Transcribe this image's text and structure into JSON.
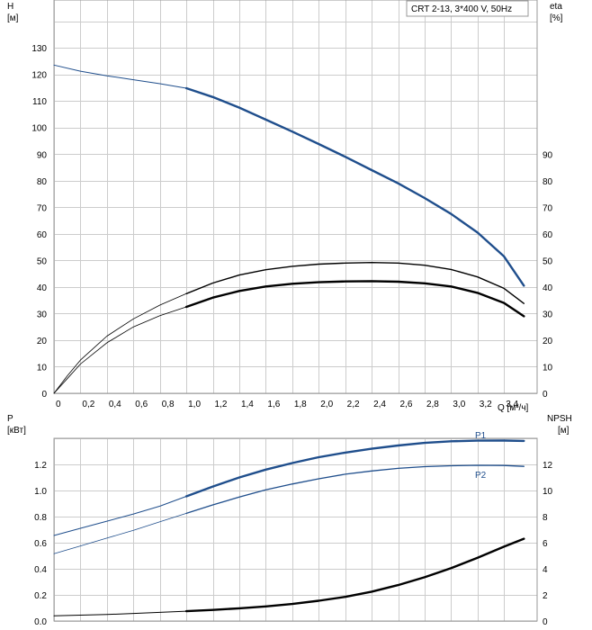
{
  "chart_data": [
    {
      "type": "line",
      "panel": "top",
      "title": "CRT 2-13, 3*400 V, 50Hz",
      "y_left_label": "H",
      "y_left_unit": "[м]",
      "y_right_label": "eta",
      "y_right_unit": "[%]",
      "x_label": "Q [м³/ч]",
      "x_ticks": [
        "0",
        "0,2",
        "0,4",
        "0,6",
        "0,8",
        "1,0",
        "1,2",
        "1,4",
        "1,6",
        "1,8",
        "2,0",
        "2,2",
        "2,4",
        "2,6",
        "2,8",
        "3,0",
        "3,2",
        "3,4"
      ],
      "y_left_ticks": [
        "0",
        "10",
        "20",
        "30",
        "40",
        "50",
        "60",
        "70",
        "80",
        "90",
        "100",
        "110",
        "120",
        "130"
      ],
      "y_right_ticks": [
        "0",
        "10",
        "20",
        "30",
        "40",
        "50",
        "60",
        "70",
        "80",
        "90"
      ],
      "xlim": [
        0,
        3.65
      ],
      "ylim": [
        0,
        148
      ],
      "grid": true,
      "series": [
        {
          "key": "H_full",
          "axis": "left",
          "color": "#1f4e8c",
          "width": 1,
          "x": [
            0,
            0.2,
            0.4,
            0.6,
            0.8,
            1.0
          ],
          "y": [
            123.5,
            121.2,
            119.5,
            118.0,
            116.5,
            114.8
          ]
        },
        {
          "key": "H_op",
          "axis": "left",
          "color": "#1f4e8c",
          "width": 2.4,
          "x": [
            1.0,
            1.2,
            1.4,
            1.6,
            1.8,
            2.0,
            2.2,
            2.4,
            2.6,
            2.8,
            3.0,
            3.2,
            3.4,
            3.55
          ],
          "y": [
            114.8,
            111.5,
            107.5,
            103.0,
            98.5,
            93.8,
            89.0,
            84.0,
            79.0,
            73.5,
            67.5,
            60.5,
            51.5,
            40.5
          ]
        },
        {
          "key": "eta_p1_full",
          "axis": "right",
          "color": "#000000",
          "width": 0.8,
          "x": [
            0,
            0.1,
            0.2,
            0.4,
            0.6,
            0.8,
            1.0
          ],
          "y": [
            0,
            6.5,
            12.5,
            21.5,
            28.0,
            33.2,
            37.5
          ]
        },
        {
          "key": "eta_p1_op",
          "axis": "right",
          "color": "#000000",
          "width": 1.4,
          "x": [
            1.0,
            1.2,
            1.4,
            1.6,
            1.8,
            2.0,
            2.2,
            2.4,
            2.6,
            2.8,
            3.0,
            3.2,
            3.4,
            3.55
          ],
          "y": [
            37.5,
            41.5,
            44.5,
            46.5,
            47.8,
            48.6,
            49.0,
            49.2,
            49.0,
            48.2,
            46.6,
            43.8,
            39.5,
            33.8
          ]
        },
        {
          "key": "eta_p2_full",
          "axis": "right",
          "color": "#000000",
          "width": 0.8,
          "x": [
            0,
            0.1,
            0.2,
            0.4,
            0.6,
            0.8,
            1.0
          ],
          "y": [
            0,
            5.5,
            11.0,
            19.0,
            25.0,
            29.2,
            32.5
          ]
        },
        {
          "key": "eta_p2_op",
          "axis": "right",
          "color": "#000000",
          "width": 2.4,
          "x": [
            1.0,
            1.2,
            1.4,
            1.6,
            1.8,
            2.0,
            2.2,
            2.4,
            2.6,
            2.8,
            3.0,
            3.2,
            3.4,
            3.55
          ],
          "y": [
            32.5,
            36.0,
            38.5,
            40.2,
            41.2,
            41.8,
            42.1,
            42.2,
            42.0,
            41.4,
            40.2,
            37.8,
            34.0,
            29.0
          ]
        }
      ]
    },
    {
      "type": "line",
      "panel": "bottom",
      "y_left_label": "P",
      "y_left_unit": "[кВт]",
      "y_right_label": "NPSH",
      "y_right_unit": "[м]",
      "y_left_ticks": [
        "0.0",
        "0.2",
        "0.4",
        "0.6",
        "0.8",
        "1.0",
        "1.2"
      ],
      "y_right_ticks": [
        "0",
        "2",
        "4",
        "6",
        "8",
        "10",
        "12"
      ],
      "xlim": [
        0,
        3.65
      ],
      "ylim": [
        0,
        1.4
      ],
      "ylim_right": [
        0,
        14
      ],
      "grid": true,
      "series": [
        {
          "key": "P1_full",
          "name": "P1",
          "axis": "left",
          "color": "#1f4e8c",
          "width": 1,
          "x": [
            0,
            0.2,
            0.4,
            0.6,
            0.8,
            1.0
          ],
          "y": [
            0.655,
            0.71,
            0.765,
            0.82,
            0.88,
            0.955
          ]
        },
        {
          "key": "P1_op",
          "axis": "left",
          "color": "#1f4e8c",
          "width": 2.4,
          "x": [
            1.0,
            1.2,
            1.4,
            1.6,
            1.8,
            2.0,
            2.2,
            2.4,
            2.6,
            2.8,
            3.0,
            3.2,
            3.4,
            3.55
          ],
          "y": [
            0.955,
            1.03,
            1.1,
            1.16,
            1.21,
            1.255,
            1.29,
            1.32,
            1.345,
            1.365,
            1.377,
            1.382,
            1.383,
            1.38
          ]
        },
        {
          "key": "P2_full",
          "name": "P2",
          "axis": "left",
          "color": "#1f4e8c",
          "width": 0.8,
          "x": [
            0,
            0.2,
            0.4,
            0.6,
            0.8,
            1.0
          ],
          "y": [
            0.515,
            0.575,
            0.635,
            0.695,
            0.76,
            0.825
          ]
        },
        {
          "key": "P2_op",
          "axis": "left",
          "color": "#1f4e8c",
          "width": 1.3,
          "x": [
            1.0,
            1.2,
            1.4,
            1.6,
            1.8,
            2.0,
            2.2,
            2.4,
            2.6,
            2.8,
            3.0,
            3.2,
            3.4,
            3.55
          ],
          "y": [
            0.825,
            0.89,
            0.95,
            1.005,
            1.05,
            1.09,
            1.125,
            1.15,
            1.17,
            1.183,
            1.19,
            1.193,
            1.192,
            1.185
          ]
        },
        {
          "key": "NPSH_full",
          "axis": "right",
          "color": "#000000",
          "width": 1,
          "x": [
            0,
            0.2,
            0.4,
            0.6,
            0.8,
            1.0
          ],
          "y": [
            0.4,
            0.45,
            0.5,
            0.58,
            0.66,
            0.75
          ]
        },
        {
          "key": "NPSH_op",
          "axis": "right",
          "color": "#000000",
          "width": 2.4,
          "x": [
            1.0,
            1.2,
            1.4,
            1.6,
            1.8,
            2.0,
            2.2,
            2.4,
            2.6,
            2.8,
            3.0,
            3.2,
            3.4,
            3.55
          ],
          "y": [
            0.75,
            0.85,
            0.97,
            1.12,
            1.3,
            1.55,
            1.85,
            2.25,
            2.75,
            3.35,
            4.05,
            4.85,
            5.7,
            6.3
          ]
        }
      ]
    }
  ]
}
